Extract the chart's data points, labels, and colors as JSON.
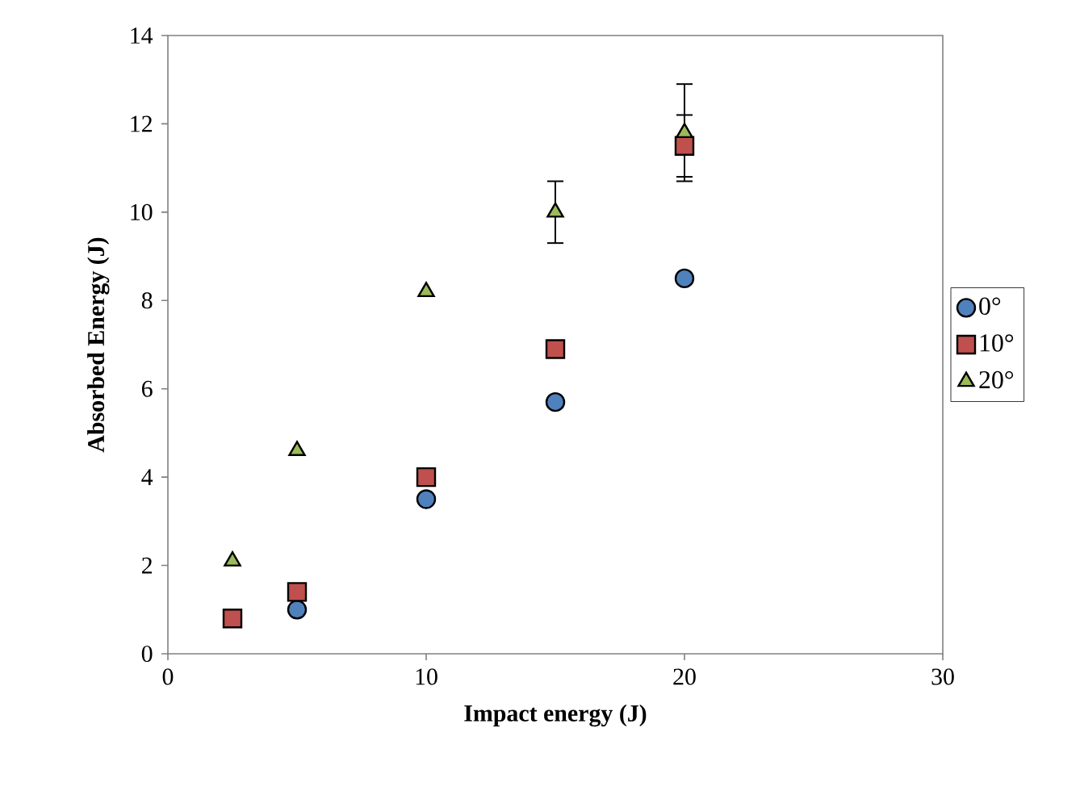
{
  "chart_data": {
    "type": "scatter",
    "xlabel": "Impact energy (J)",
    "ylabel": "Absorbed Energy (J)",
    "xlim": [
      0,
      30
    ],
    "xticks": [
      0,
      10,
      20,
      30
    ],
    "ylim": [
      0,
      14
    ],
    "yticks": [
      0,
      2,
      4,
      6,
      8,
      10,
      12,
      14
    ],
    "grid": false,
    "legend": "right",
    "series": [
      {
        "name": "0°",
        "color": "#4f81bd",
        "marker": "circle",
        "x": [
          5,
          10,
          15,
          20
        ],
        "values": [
          1.0,
          3.5,
          5.7,
          8.5
        ]
      },
      {
        "name": "10°",
        "color": "#c0504d",
        "marker": "square",
        "x": [
          2.5,
          5,
          10,
          15,
          20
        ],
        "values": [
          0.8,
          1.4,
          4.0,
          6.9,
          11.5
        ],
        "errors": [
          null,
          null,
          null,
          null,
          0.7
        ]
      },
      {
        "name": "20°",
        "color": "#9bbb59",
        "marker": "triangle",
        "x": [
          2.5,
          5,
          10,
          15,
          20
        ],
        "values": [
          2.1,
          4.6,
          8.2,
          10.0,
          11.8
        ],
        "errors": [
          null,
          null,
          null,
          0.7,
          1.1
        ]
      }
    ]
  }
}
